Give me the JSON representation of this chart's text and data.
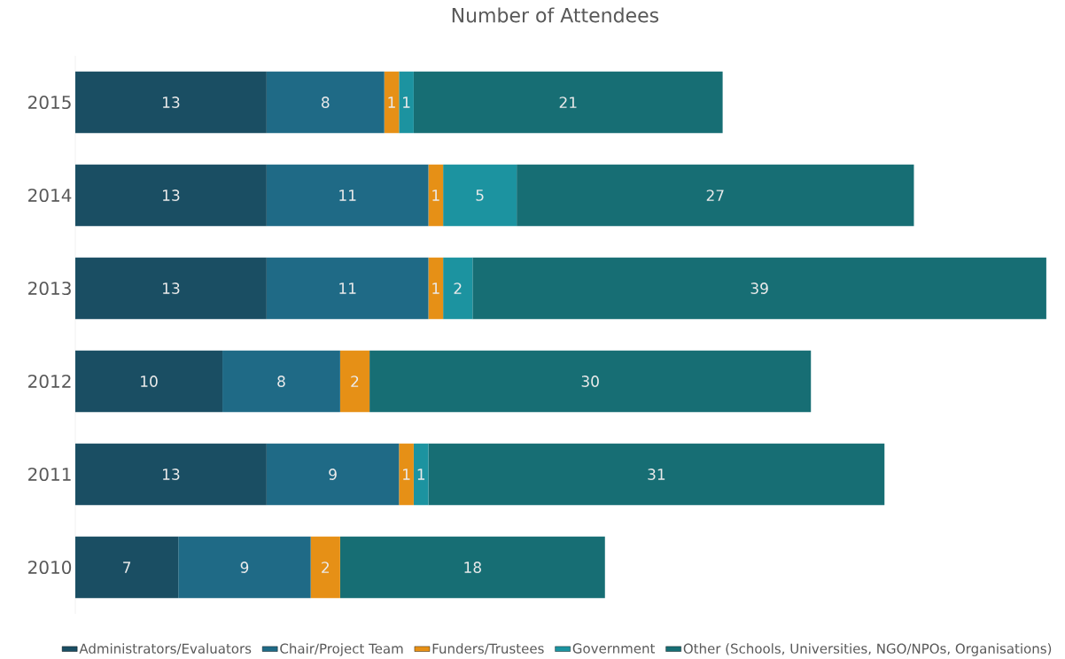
{
  "chart_data": {
    "type": "bar",
    "orientation": "horizontal",
    "stacked": true,
    "title": "Number of Attendees",
    "categories": [
      "2015",
      "2014",
      "2013",
      "2012",
      "2011",
      "2010"
    ],
    "series": [
      {
        "name": "Administrators/Evaluators",
        "color": "#1a4e63",
        "values": [
          13,
          13,
          13,
          10,
          13,
          7
        ]
      },
      {
        "name": "Chair/Project Team",
        "color": "#1f6a86",
        "values": [
          8,
          11,
          11,
          8,
          9,
          9
        ]
      },
      {
        "name": "Funders/Trustees",
        "color": "#e69016",
        "values": [
          1,
          1,
          1,
          2,
          1,
          2
        ]
      },
      {
        "name": "Government",
        "color": "#1c93a0",
        "values": [
          1,
          5,
          2,
          null,
          1,
          null
        ]
      },
      {
        "name": "Other (Schools, Universities, NGO/NPOs, Organisations)",
        "color": "#176e74",
        "values": [
          21,
          27,
          39,
          30,
          31,
          18
        ]
      }
    ],
    "tick_labels": "y",
    "data_labels": true,
    "legend": "bottom"
  }
}
